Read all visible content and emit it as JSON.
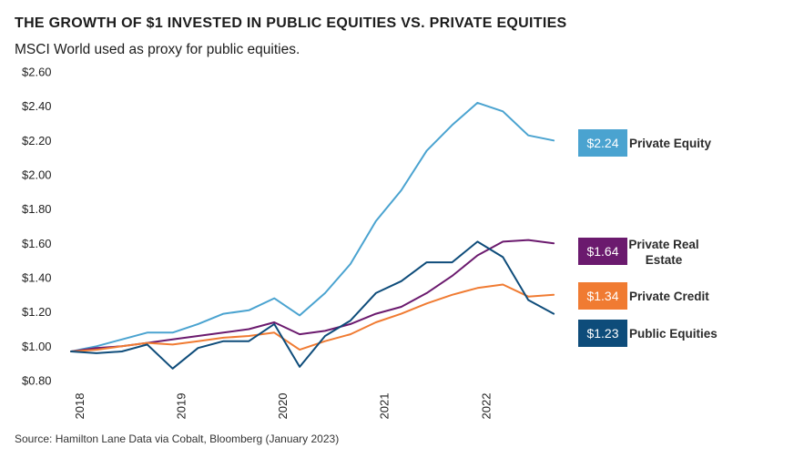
{
  "title": "THE GROWTH OF $1 INVESTED IN PUBLIC EQUITIES VS. PRIVATE EQUITIES",
  "subtitle": "MSCI World used as proxy for public equities.",
  "source": "Source: Hamilton Lane Data via Cobalt, Bloomberg (January 2023)",
  "chart_data": {
    "type": "line",
    "title": "THE GROWTH OF $1 INVESTED IN PUBLIC EQUITIES VS. PRIVATE EQUITIES",
    "subtitle": "MSCI World used as proxy for public equities.",
    "xlabel": "",
    "ylabel": "",
    "ylim": [
      0.8,
      2.6
    ],
    "xlim": [
      2017.75,
      2022.75
    ],
    "grid": false,
    "legend": "end-of-line boxes (right)",
    "yticks": [
      0.8,
      1.0,
      1.2,
      1.4,
      1.6,
      1.8,
      2.0,
      2.2,
      2.4,
      2.6
    ],
    "ytick_labels": [
      "$0.80",
      "$1.00",
      "$1.20",
      "$1.40",
      "$1.60",
      "$1.80",
      "$2.00",
      "$2.20",
      "$2.40",
      "$2.60"
    ],
    "xticks": [
      2018,
      2019,
      2020,
      2021,
      2022
    ],
    "xtick_labels": [
      "2018",
      "2019",
      "2020",
      "2021",
      "2022"
    ],
    "x": [
      2017.75,
      2018.0,
      2018.25,
      2018.5,
      2018.75,
      2019.0,
      2019.25,
      2019.5,
      2019.75,
      2020.0,
      2020.25,
      2020.5,
      2020.75,
      2021.0,
      2021.25,
      2021.5,
      2021.75,
      2022.0,
      2022.25,
      2022.5
    ],
    "series": [
      {
        "name": "Private Equity",
        "color": "#4aa3d0",
        "end_label": "$2.24",
        "values": [
          0.97,
          1.0,
          1.04,
          1.08,
          1.08,
          1.13,
          1.19,
          1.21,
          1.28,
          1.18,
          1.31,
          1.48,
          1.73,
          1.91,
          2.14,
          2.29,
          2.42,
          2.37,
          2.23,
          2.2
        ]
      },
      {
        "name": "Private Real Estate",
        "color": "#6b1a6e",
        "end_label": "$1.64",
        "values": [
          0.97,
          0.99,
          1.0,
          1.02,
          1.04,
          1.06,
          1.08,
          1.1,
          1.14,
          1.07,
          1.09,
          1.13,
          1.19,
          1.23,
          1.31,
          1.41,
          1.53,
          1.61,
          1.62,
          1.6
        ]
      },
      {
        "name": "Private Credit",
        "color": "#f07b32",
        "end_label": "$1.34",
        "values": [
          0.97,
          0.98,
          1.0,
          1.02,
          1.01,
          1.03,
          1.05,
          1.06,
          1.08,
          0.98,
          1.03,
          1.07,
          1.14,
          1.19,
          1.25,
          1.3,
          1.34,
          1.36,
          1.29,
          1.3
        ]
      },
      {
        "name": "Public Equities",
        "color": "#0e4c7a",
        "end_label": "$1.23",
        "values": [
          0.97,
          0.96,
          0.97,
          1.01,
          0.87,
          0.99,
          1.03,
          1.03,
          1.13,
          0.88,
          1.06,
          1.15,
          1.31,
          1.38,
          1.49,
          1.49,
          1.61,
          1.52,
          1.27,
          1.19
        ]
      }
    ],
    "end_labels": [
      {
        "value": "$2.24",
        "name": "Private Equity",
        "color": "#4aa3d0"
      },
      {
        "value": "$1.64",
        "name": "Private Real Estate",
        "name_lines": [
          "Private Real",
          "Estate"
        ],
        "color": "#6b1a6e"
      },
      {
        "value": "$1.34",
        "name": "Private Credit",
        "color": "#f07b32"
      },
      {
        "value": "$1.23",
        "name": "Public Equities",
        "color": "#0e4c7a"
      }
    ]
  }
}
